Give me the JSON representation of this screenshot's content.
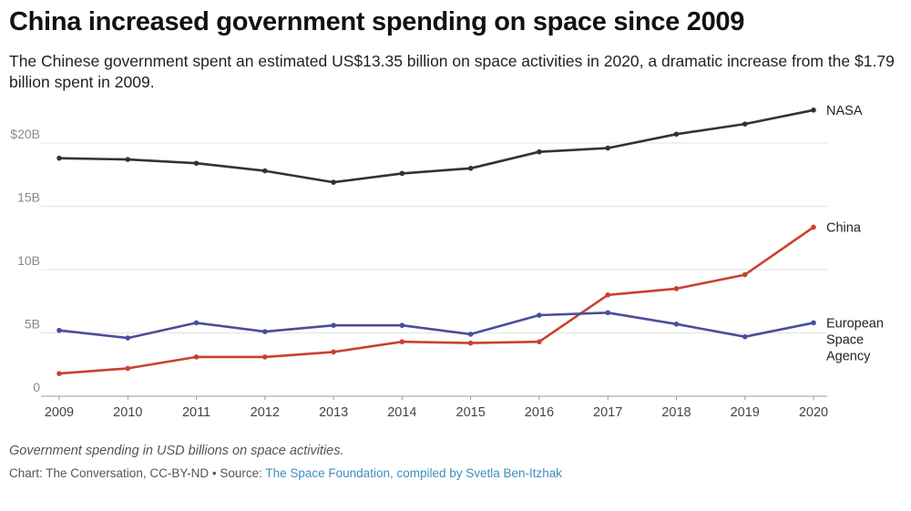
{
  "header": {
    "title": "China increased government spending on space since 2009",
    "subtitle": "The Chinese government spent an estimated US$13.35 billion on space activities in 2020, a dramatic increase from the $1.79 billion spent in 2009."
  },
  "footer": {
    "caption": "Government spending in USD billions on space activities.",
    "credit_prefix": "Chart: The Conversation, CC-BY-ND • Source: ",
    "credit_link": "The Space Foundation, compiled by Svetla Ben-Itzhak"
  },
  "chart_data": {
    "type": "line",
    "x": [
      "2009",
      "2010",
      "2011",
      "2012",
      "2013",
      "2014",
      "2015",
      "2016",
      "2017",
      "2018",
      "2019",
      "2020"
    ],
    "ylim": [
      0,
      25
    ],
    "yticks": [
      {
        "value": 0,
        "label": "0"
      },
      {
        "value": 5,
        "label": "5B"
      },
      {
        "value": 10,
        "label": "10B"
      },
      {
        "value": 15,
        "label": "15B"
      },
      {
        "value": 20,
        "label": "$20B"
      }
    ],
    "grid": true,
    "series": [
      {
        "name": "NASA",
        "label_lines": [
          "NASA"
        ],
        "color": "#333333",
        "values": [
          18.8,
          18.7,
          18.4,
          17.8,
          16.9,
          17.6,
          18.0,
          19.3,
          19.6,
          20.7,
          21.5,
          22.6
        ]
      },
      {
        "name": "China",
        "label_lines": [
          "China"
        ],
        "color": "#c8412f",
        "values": [
          1.79,
          2.2,
          3.1,
          3.1,
          3.5,
          4.3,
          4.2,
          4.3,
          8.0,
          8.5,
          9.6,
          13.35
        ]
      },
      {
        "name": "European Space Agency",
        "label_lines": [
          "European",
          "Space",
          "Agency"
        ],
        "color": "#4a4e9a",
        "values": [
          5.2,
          4.6,
          5.8,
          5.1,
          5.6,
          5.6,
          4.9,
          6.4,
          6.6,
          5.7,
          4.7,
          5.8
        ]
      }
    ]
  }
}
